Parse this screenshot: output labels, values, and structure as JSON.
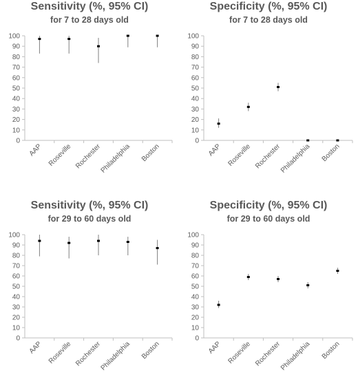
{
  "chart_data": [
    {
      "type": "scatter",
      "title": "Sensitivity (%, 95% CI)",
      "subtitle": "for 7 to 28 days old",
      "categories": [
        "AAP",
        "Roseville",
        "Rochester",
        "Philadelphia",
        "Boston"
      ],
      "values": [
        97,
        97,
        90,
        100,
        100
      ],
      "ci_low": [
        83,
        83,
        74,
        89,
        89
      ],
      "ci_high": [
        100,
        100,
        98,
        100,
        100
      ],
      "ylim": [
        0,
        100
      ],
      "yticks": [
        "0",
        "10",
        "20",
        "30",
        "40",
        "50",
        "60",
        "70",
        "80",
        "90",
        "100"
      ],
      "grid": false
    },
    {
      "type": "scatter",
      "title": "Specificity  (%, 95% CI)",
      "subtitle": "for 7 to 28 days old",
      "categories": [
        "AAP",
        "Roseville",
        "Rochester",
        "Philadelphia",
        "Boston"
      ],
      "values": [
        16,
        32,
        51,
        0,
        0
      ],
      "ci_low": [
        12,
        28,
        47,
        0,
        0
      ],
      "ci_high": [
        21,
        36,
        55,
        0,
        0
      ],
      "ylim": [
        0,
        100
      ],
      "yticks": [
        "0",
        "10",
        "20",
        "30",
        "40",
        "50",
        "60",
        "70",
        "80",
        "90",
        "100"
      ],
      "grid": false
    },
    {
      "type": "scatter",
      "title": "Sensitivity (%, 95% CI)",
      "subtitle": "for 29 to 60 days old",
      "categories": [
        "AAP",
        "Roseville",
        "Rochester",
        "Philadelphia",
        "Boston"
      ],
      "values": [
        94,
        92,
        94,
        93,
        87
      ],
      "ci_low": [
        79,
        77,
        80,
        80,
        71
      ],
      "ci_high": [
        100,
        98,
        100,
        98,
        95
      ],
      "ylim": [
        0,
        100
      ],
      "yticks": [
        "0",
        "10",
        "20",
        "30",
        "40",
        "50",
        "60",
        "70",
        "80",
        "90",
        "100"
      ],
      "grid": false
    },
    {
      "type": "scatter",
      "title": "Specificity  (%, 95% CI)",
      "subtitle": "for 29 to 60 days old",
      "categories": [
        "AAP",
        "Roseville",
        "Rochester",
        "Philadelphia",
        "Boston"
      ],
      "values": [
        32,
        59,
        57,
        51,
        65
      ],
      "ci_low": [
        29,
        56,
        54,
        48,
        62
      ],
      "ci_high": [
        36,
        62,
        60,
        54,
        68
      ],
      "ylim": [
        0,
        100
      ],
      "yticks": [
        "0",
        "10",
        "20",
        "30",
        "40",
        "50",
        "60",
        "70",
        "80",
        "90",
        "100"
      ],
      "grid": false
    }
  ],
  "colors": {
    "axis": "#bfbfbf",
    "marker": "#000000",
    "error_bar": "#7f7f7f",
    "text": "#595959"
  }
}
